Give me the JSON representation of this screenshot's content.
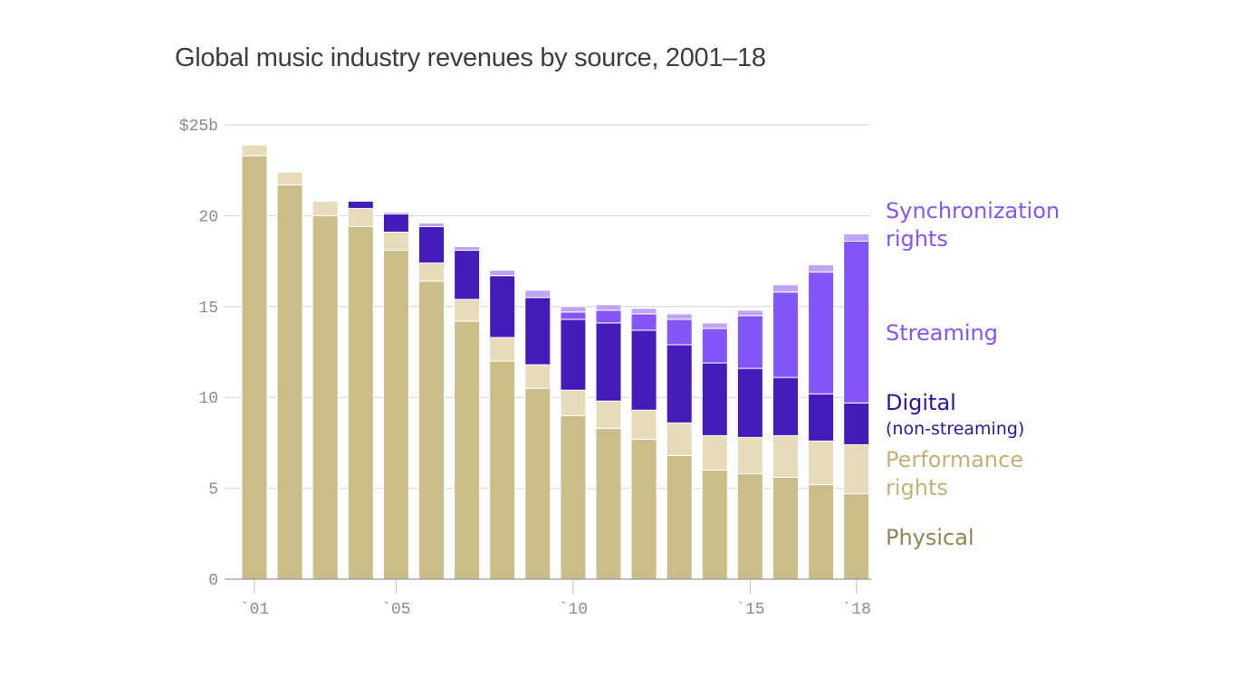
{
  "chart_data": {
    "type": "bar",
    "stacked": true,
    "title": "Global music industry revenues by source, 2001–18",
    "xlabel": "",
    "ylabel": "",
    "ylim": [
      0,
      25
    ],
    "grid": true,
    "unit": "$ billions",
    "y_ticks": [
      {
        "value": 0,
        "label": "0"
      },
      {
        "value": 5,
        "label": "5"
      },
      {
        "value": 10,
        "label": "10"
      },
      {
        "value": 15,
        "label": "15"
      },
      {
        "value": 20,
        "label": "20"
      },
      {
        "value": 25,
        "label": "$25b"
      }
    ],
    "x_ticks": [
      {
        "index": 0,
        "label": "`01"
      },
      {
        "index": 4,
        "label": "`05"
      },
      {
        "index": 9,
        "label": "`10"
      },
      {
        "index": 14,
        "label": "`15"
      },
      {
        "index": 17,
        "label": "`18"
      }
    ],
    "categories": [
      "2001",
      "2002",
      "2003",
      "2004",
      "2005",
      "2006",
      "2007",
      "2008",
      "2009",
      "2010",
      "2011",
      "2012",
      "2013",
      "2014",
      "2015",
      "2016",
      "2017",
      "2018"
    ],
    "series": [
      {
        "name": "Physical",
        "color": "#cabd88",
        "values": [
          23.3,
          21.7,
          20.0,
          19.4,
          18.1,
          16.4,
          14.2,
          12.0,
          10.5,
          9.0,
          8.3,
          7.7,
          6.8,
          6.0,
          5.8,
          5.6,
          5.2,
          4.7
        ]
      },
      {
        "name": "Performance rights",
        "color": "#e6dcba",
        "values": [
          0.6,
          0.7,
          0.8,
          1.0,
          1.0,
          1.0,
          1.2,
          1.3,
          1.3,
          1.4,
          1.5,
          1.6,
          1.8,
          1.9,
          2.0,
          2.3,
          2.4,
          2.7
        ]
      },
      {
        "name": "Digital (non-streaming)",
        "color": "#431bb8",
        "values": [
          0.0,
          0.0,
          0.0,
          0.4,
          1.0,
          2.0,
          2.7,
          3.4,
          3.7,
          3.9,
          4.3,
          4.4,
          4.3,
          4.0,
          3.8,
          3.2,
          2.6,
          2.3
        ]
      },
      {
        "name": "Streaming",
        "color": "#8455f7",
        "values": [
          0.0,
          0.0,
          0.0,
          0.0,
          0.0,
          0.0,
          0.0,
          0.0,
          0.0,
          0.4,
          0.7,
          0.9,
          1.4,
          1.9,
          2.9,
          4.7,
          6.7,
          8.9
        ]
      },
      {
        "name": "Synchronization rights",
        "color": "#bda4f7",
        "values": [
          0.0,
          0.0,
          0.0,
          0.0,
          0.1,
          0.2,
          0.2,
          0.3,
          0.4,
          0.3,
          0.3,
          0.3,
          0.3,
          0.3,
          0.3,
          0.4,
          0.4,
          0.4
        ]
      }
    ],
    "legend": [
      {
        "label": "Synchronization rights",
        "color": "#8455f7"
      },
      {
        "label": "Streaming",
        "color": "#8455f7"
      },
      {
        "label": "Digital",
        "sub": "(non-streaming)",
        "color": "#2f139e"
      },
      {
        "label": "Performance rights",
        "color": "#c3b177"
      },
      {
        "label": "Physical",
        "color": "#938451"
      }
    ]
  }
}
